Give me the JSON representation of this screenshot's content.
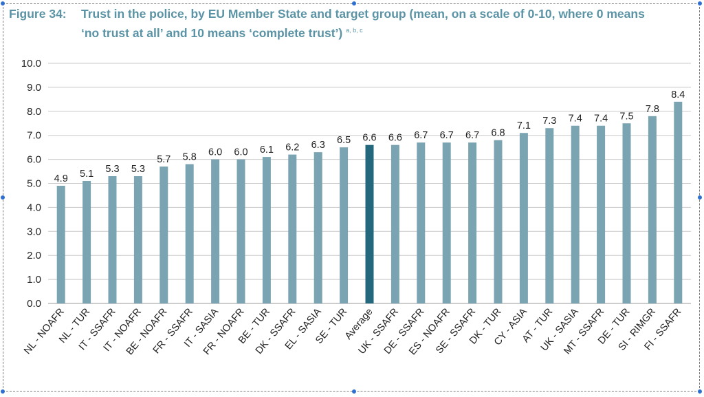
{
  "chart_data": {
    "type": "bar",
    "title_prefix": "Figure 34:",
    "title_line1": "Trust in the police, by EU Member State and target group (mean, on a scale of 0-10, where 0 means",
    "title_line2": "‘no trust at all’ and 10 means ‘complete trust’)",
    "title_notes": "a, b, c",
    "categories": [
      "NL - NOAFR",
      "NL - TUR",
      "IT - SSAFR",
      "IT - NOAFR",
      "BE - NOAFR",
      "FR - SSAFR",
      "IT - SASIA",
      "FR - NOAFR",
      "BE - TUR",
      "DK - SSAFR",
      "EL - SASIA",
      "SE - TUR",
      "Average",
      "UK - SSAFR",
      "DE - SSAFR",
      "ES - NOAFR",
      "SE - SSAFR",
      "DK - TUR",
      "CY - ASIA",
      "AT - TUR",
      "UK - SASIA",
      "MT - SSAFR",
      "DE - TUR",
      "SI - RIMGR",
      "FI - SSAFR"
    ],
    "values": [
      4.9,
      5.1,
      5.3,
      5.3,
      5.7,
      5.8,
      6.0,
      6.0,
      6.1,
      6.2,
      6.3,
      6.5,
      6.6,
      6.6,
      6.7,
      6.7,
      6.7,
      6.8,
      7.1,
      7.3,
      7.4,
      7.4,
      7.5,
      7.8,
      8.4
    ],
    "value_labels": [
      "4.9",
      "5.1",
      "5.3",
      "5.3",
      "5.7",
      "5.8",
      "6.0",
      "6.0",
      "6.1",
      "6.2",
      "6.3",
      "6.5",
      "6.6",
      "6.6",
      "6.7",
      "6.7",
      "6.7",
      "6.8",
      "7.1",
      "7.3",
      "7.4",
      "7.4",
      "7.5",
      "7.8",
      "8.4"
    ],
    "highlight_category": "Average",
    "ylim": [
      0,
      10
    ],
    "yticks": [
      "0.0",
      "1.0",
      "2.0",
      "3.0",
      "4.0",
      "5.0",
      "6.0",
      "7.0",
      "8.0",
      "9.0",
      "10.0"
    ],
    "grid": true,
    "colors": {
      "bar": "#7ba4b3",
      "highlight": "#23687c",
      "title": "#5a93a5",
      "grid": "#c8c8c8"
    }
  }
}
